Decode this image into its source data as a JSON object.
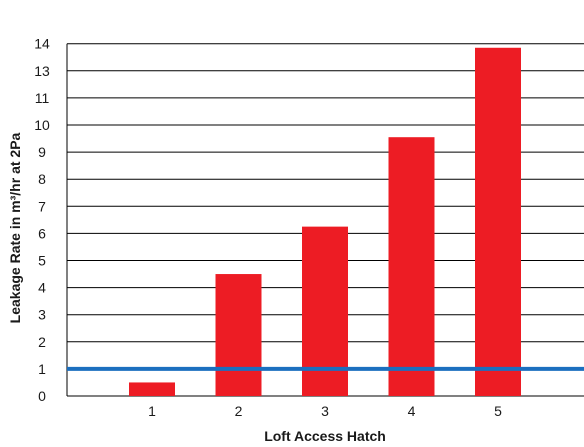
{
  "chart_data": {
    "type": "bar",
    "title": "",
    "xlabel": "Loft Access Hatch",
    "ylabel": "Leakage Rate in m³/hr at 2Pa",
    "categories": [
      "1",
      "2",
      "3",
      "4",
      "5"
    ],
    "values": [
      0.5,
      4.5,
      6.25,
      9.55,
      12.85
    ],
    "ytick_labels": [
      "0",
      "1",
      "2",
      "3",
      "4",
      "5",
      "6",
      "7",
      "8",
      "9",
      "10",
      "11",
      "13",
      "14"
    ],
    "reference_line": {
      "value": 1.0
    },
    "grid": "horizontal",
    "colors": {
      "bar": "#ed1c24",
      "reference_line": "#1b6fbf",
      "grid": "#000000"
    }
  }
}
